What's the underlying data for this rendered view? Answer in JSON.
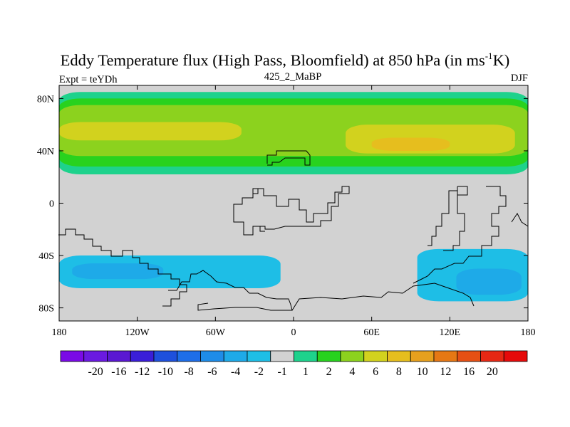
{
  "chart_data": {
    "type": "heatmap",
    "title_main": "Eddy Temperature flux (High Pass, Bloomfield) at 850 hPa (in ms",
    "title_sup": "-1",
    "title_end": "K)",
    "subtitle_left": "Expt = teYDh",
    "subtitle_center": "425_2_MaBP",
    "subtitle_right": "DJF",
    "x_range": [
      -180,
      180
    ],
    "y_range": [
      -90,
      90
    ],
    "x_ticks": [
      {
        "value": -180,
        "label": "180"
      },
      {
        "value": -120,
        "label": "120W"
      },
      {
        "value": -60,
        "label": "60W"
      },
      {
        "value": 0,
        "label": "0"
      },
      {
        "value": 60,
        "label": "60E"
      },
      {
        "value": 120,
        "label": "120E"
      },
      {
        "value": 180,
        "label": "180"
      }
    ],
    "y_ticks": [
      {
        "value": 80,
        "label": "80N"
      },
      {
        "value": 40,
        "label": "40N"
      },
      {
        "value": 0,
        "label": "0"
      },
      {
        "value": -40,
        "label": "40S"
      },
      {
        "value": -80,
        "label": "80S"
      }
    ],
    "colorbar": {
      "colors": [
        "#7a0ae6",
        "#6a1ae0",
        "#5a18d2",
        "#3a1ed8",
        "#1e50dc",
        "#1e6ee8",
        "#1e8ce8",
        "#1eaae8",
        "#1ebee6",
        "#d2d2d2",
        "#1ed28c",
        "#28d21e",
        "#8cd21e",
        "#d2d21e",
        "#e6be1e",
        "#e6a01e",
        "#e67814",
        "#e65014",
        "#e62814",
        "#e60a0a"
      ],
      "labels": [
        "-20",
        "-16",
        "-12",
        "-10",
        "-8",
        "-6",
        "-4",
        "-2",
        "-1",
        "1",
        "2",
        "4",
        "6",
        "8",
        "10",
        "12",
        "16",
        "20"
      ]
    },
    "regions": [
      {
        "color": "#1ed28c",
        "lon": [
          -180,
          180
        ],
        "lat": [
          22,
          85
        ]
      },
      {
        "color": "#28d21e",
        "lon": [
          -180,
          180
        ],
        "lat": [
          28,
          80
        ]
      },
      {
        "color": "#8cd21e",
        "lon": [
          -180,
          180
        ],
        "lat": [
          36,
          75
        ]
      },
      {
        "color": "#d2d21e",
        "lon": [
          -180,
          -40
        ],
        "lat": [
          48,
          62
        ]
      },
      {
        "color": "#d2d21e",
        "lon": [
          40,
          170
        ],
        "lat": [
          38,
          60
        ]
      },
      {
        "color": "#e6be1e",
        "lon": [
          60,
          120
        ],
        "lat": [
          40,
          50
        ]
      },
      {
        "color": "#1ebee6",
        "lon": [
          -180,
          -10
        ],
        "lat": [
          -65,
          -40
        ]
      },
      {
        "color": "#1eaae8",
        "lon": [
          -170,
          -100
        ],
        "lat": [
          -58,
          -46
        ]
      },
      {
        "color": "#1ebee6",
        "lon": [
          95,
          180
        ],
        "lat": [
          -75,
          -35
        ]
      },
      {
        "color": "#1eaae8",
        "lon": [
          125,
          175
        ],
        "lat": [
          -70,
          -50
        ]
      }
    ]
  }
}
